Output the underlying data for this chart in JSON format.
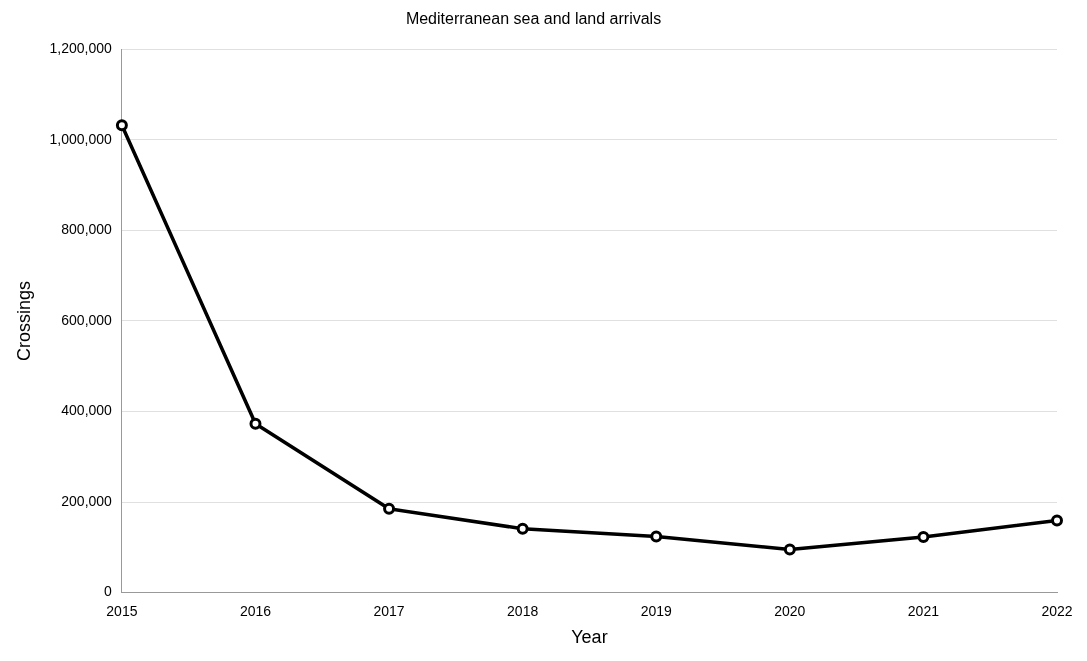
{
  "chart_data": {
    "type": "line",
    "title": "Mediterranean sea and land arrivals",
    "xlabel": "Year",
    "ylabel": "Crossings",
    "categories": [
      "2015",
      "2016",
      "2017",
      "2018",
      "2019",
      "2020",
      "2021",
      "2022"
    ],
    "series": [
      {
        "color": "#000000",
        "values": [
          1032000,
          373000,
          185000,
          141000,
          124000,
          95000,
          123000,
          159000
        ]
      }
    ],
    "ylim": [
      0,
      1200000
    ],
    "yticks": [
      {
        "value": 0,
        "label": "0"
      },
      {
        "value": 200000,
        "label": "200,000"
      },
      {
        "value": 400000,
        "label": "400,000"
      },
      {
        "value": 600000,
        "label": "600,000"
      },
      {
        "value": 800000,
        "label": "800,000"
      },
      {
        "value": 1000000,
        "label": "1,000,000"
      },
      {
        "value": 1200000,
        "label": "1,200,000"
      }
    ],
    "grid": "y",
    "marker": "circle",
    "line_style": "solid"
  }
}
